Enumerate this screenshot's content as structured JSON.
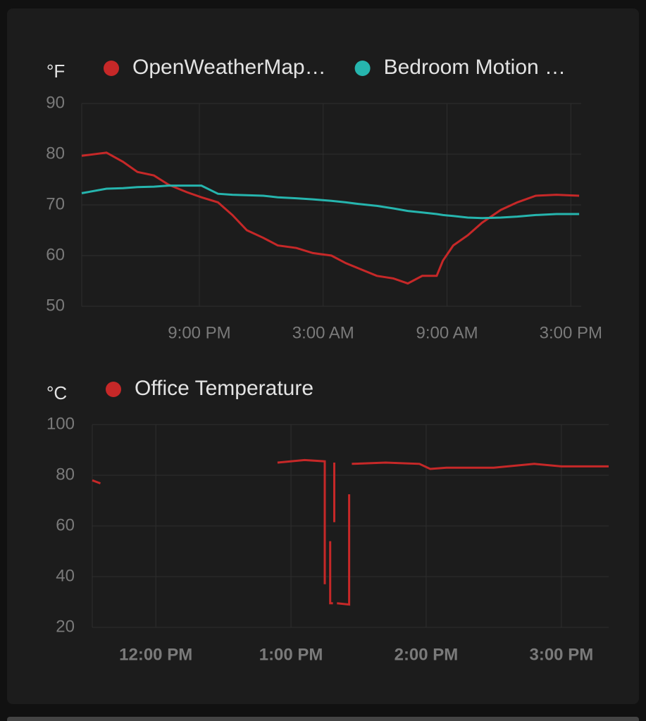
{
  "chart_data": [
    {
      "type": "line",
      "y_label": "°F",
      "x": [
        15.3,
        16.5,
        17.3,
        18.0,
        18.8,
        19.5,
        20.4,
        21.1,
        21.9,
        22.6,
        23.3,
        24.1,
        24.8,
        25.7,
        26.5,
        27.4,
        28.1,
        28.7,
        29.6,
        30.4,
        31.1,
        31.8,
        32.5,
        32.8,
        33.3,
        34.0,
        34.7,
        35.6,
        36.4,
        37.3,
        38.3,
        39.4
      ],
      "series": [
        {
          "name": "OpenWeatherMap…",
          "color": "#c62828",
          "values": [
            79.7,
            80.3,
            78.5,
            76.5,
            75.8,
            74,
            72.5,
            71.5,
            70.5,
            68,
            65,
            63.5,
            62,
            61.5,
            60.5,
            60,
            58.5,
            57.5,
            56,
            55.5,
            54.5,
            56,
            56,
            59,
            62,
            64,
            66.5,
            69,
            70.5,
            71.8,
            72,
            71.8
          ]
        },
        {
          "name": "Bedroom Motion …",
          "color": "#26b5ae",
          "values": [
            72.3,
            73.2,
            73.3,
            73.5,
            73.6,
            73.8,
            73.8,
            73.8,
            72.2,
            72,
            71.9,
            71.8,
            71.5,
            71.3,
            71.1,
            70.8,
            70.5,
            70.2,
            69.8,
            69.3,
            68.8,
            68.5,
            68.2,
            68,
            67.8,
            67.5,
            67.4,
            67.5,
            67.7,
            68,
            68.2,
            68.2
          ]
        }
      ],
      "xlim": [
        15.3,
        39.5
      ],
      "xticks": [
        {
          "value": 21,
          "label": "9:00 PM"
        },
        {
          "value": 27,
          "label": "3:00 AM"
        },
        {
          "value": 33,
          "label": "9:00 AM"
        },
        {
          "value": 39,
          "label": "3:00 PM"
        }
      ],
      "ylim": [
        50,
        90
      ],
      "yticks": [
        50,
        60,
        70,
        80,
        90
      ],
      "grid": true
    },
    {
      "type": "line",
      "y_label": "°C",
      "x": [
        11.53,
        11.59,
        11.7,
        12.9,
        13.1,
        13.25,
        13.25,
        13.27,
        13.29,
        13.29,
        13.31,
        13.315,
        13.32,
        13.32,
        13.33,
        13.34,
        13.43,
        13.43,
        13.44,
        13.45,
        13.7,
        13.95,
        14.03,
        14.15,
        14.5,
        14.8,
        15.0,
        15.35
      ],
      "series": [
        {
          "name": "Office Temperature",
          "color": "#c62828",
          "values": [
            78,
            76.8,
            null,
            85,
            86,
            85.5,
            37,
            null,
            54,
            29.5,
            29.5,
            null,
            85,
            61.5,
            null,
            29.5,
            29,
            72.5,
            null,
            84.5,
            85,
            84.5,
            82.5,
            83,
            83,
            84.5,
            83.5,
            83.5
          ]
        }
      ],
      "xlim": [
        11.53,
        15.35
      ],
      "xticks": [
        {
          "value": 12,
          "label": "12:00 PM"
        },
        {
          "value": 13,
          "label": "1:00 PM"
        },
        {
          "value": 14,
          "label": "2:00 PM"
        },
        {
          "value": 15,
          "label": "3:00 PM"
        }
      ],
      "ylim": [
        20,
        100
      ],
      "yticks": [
        20,
        40,
        60,
        80,
        100
      ],
      "grid": true
    }
  ]
}
